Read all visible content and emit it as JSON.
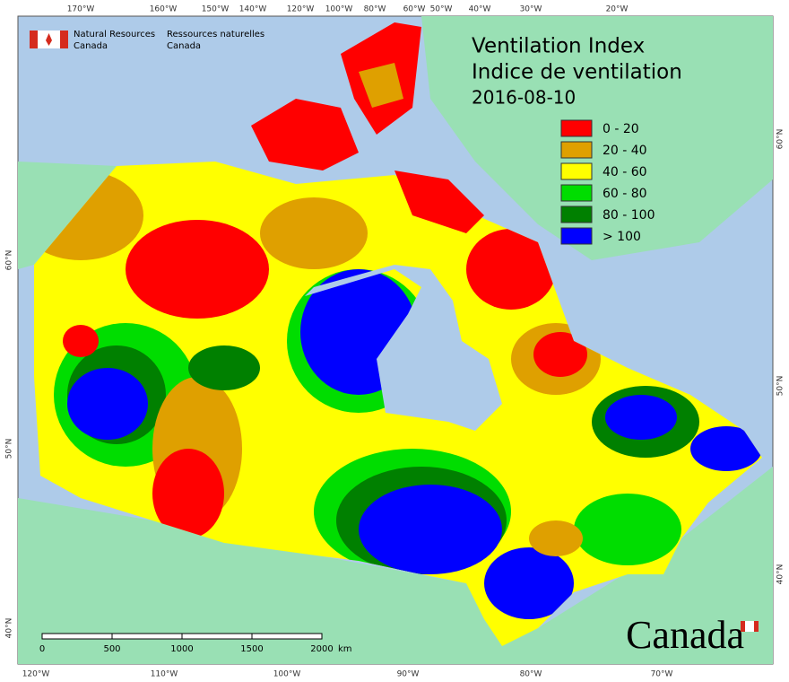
{
  "header": {
    "agency_en": [
      "Natural Resources",
      "Canada"
    ],
    "agency_fr": [
      "Ressources naturelles",
      "Canada"
    ]
  },
  "title": {
    "en": "Ventilation Index",
    "fr": "Indice de ventilation",
    "date": "2016-08-10"
  },
  "legend": [
    {
      "label": "0 - 20",
      "color": "#ff0000"
    },
    {
      "label": "20 - 40",
      "color": "#dfa000"
    },
    {
      "label": "40 - 60",
      "color": "#ffff00"
    },
    {
      "label": "60 - 80",
      "color": "#00dd00"
    },
    {
      "label": "80 - 100",
      "color": "#008000"
    },
    {
      "label": "> 100",
      "color": "#0000ff"
    }
  ],
  "graticule": {
    "top": [
      "170°W",
      "160°W",
      "150°W",
      "140°W",
      "120°W",
      "100°W",
      "80°W",
      "60°W",
      "50°W",
      "40°W",
      "30°W",
      "20°W"
    ],
    "bottom": [
      "120°W",
      "110°W",
      "100°W",
      "90°W",
      "80°W",
      "70°W"
    ],
    "left": [
      "60°N",
      "50°N",
      "40°N"
    ],
    "right": [
      "60°N",
      "50°N",
      "40°N"
    ]
  },
  "scale_bar": {
    "labels": [
      "0",
      "500",
      "1000",
      "1500",
      "2000"
    ],
    "unit": "km"
  },
  "wordmark": "Canada"
}
